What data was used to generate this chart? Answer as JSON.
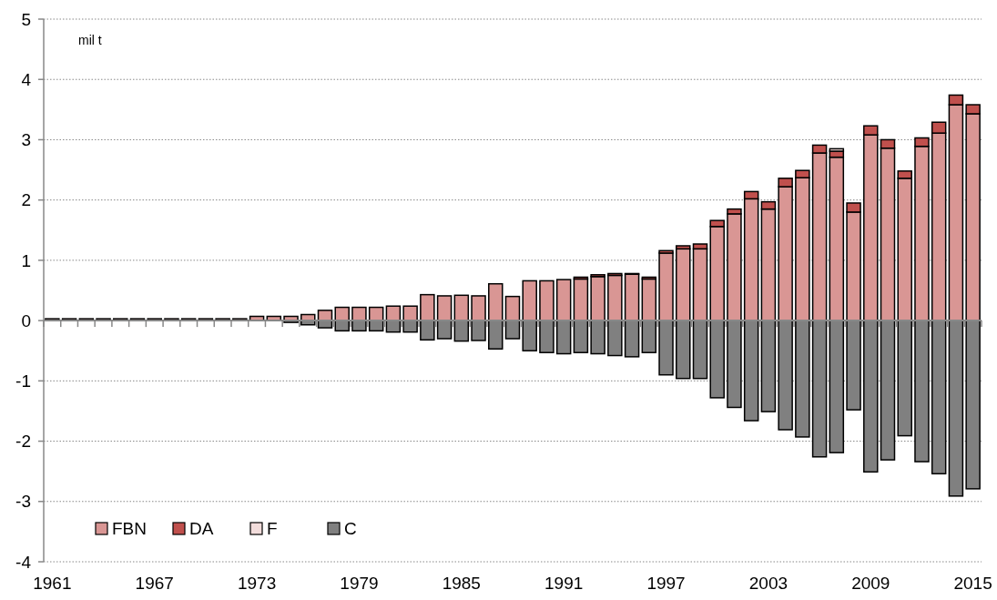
{
  "chart_data": {
    "type": "bar",
    "stacked": true,
    "annotations": [
      "mil t"
    ],
    "categories": [
      "1961",
      null,
      null,
      null,
      null,
      null,
      "1967",
      null,
      null,
      null,
      null,
      null,
      "1973",
      null,
      null,
      null,
      null,
      null,
      "1979",
      null,
      null,
      null,
      null,
      null,
      "1985",
      null,
      null,
      null,
      null,
      null,
      "1991",
      null,
      null,
      null,
      null,
      null,
      "1997",
      null,
      null,
      null,
      null,
      null,
      "2003",
      null,
      null,
      null,
      null,
      null,
      "2009",
      null,
      null,
      null,
      null,
      null,
      "2015"
    ],
    "series": [
      {
        "name": "FBN",
        "color": "#d99694",
        "values": [
          0.03,
          0.03,
          0.03,
          0.03,
          0.03,
          0.03,
          0.03,
          0.03,
          0.03,
          0.03,
          0.03,
          0.03,
          0.07,
          0.07,
          0.07,
          0.1,
          0.17,
          0.22,
          0.22,
          0.22,
          0.24,
          0.24,
          0.43,
          0.41,
          0.42,
          0.41,
          0.61,
          0.4,
          0.66,
          0.66,
          0.68,
          0.69,
          0.73,
          0.75,
          0.77,
          0.69,
          1.12,
          1.19,
          1.19,
          1.56,
          1.77,
          2.02,
          1.85,
          2.22,
          2.37,
          2.78,
          2.71,
          1.8,
          3.08,
          2.86,
          2.36,
          2.89,
          3.11,
          3.58,
          3.43
        ]
      },
      {
        "name": "DA",
        "color": "#c0504d",
        "values": [
          0,
          0,
          0,
          0,
          0,
          0,
          0,
          0,
          0,
          0,
          0,
          0,
          0,
          0,
          0,
          0,
          0,
          0,
          0,
          0,
          0,
          0,
          0,
          0,
          0,
          0,
          0,
          0,
          0,
          0,
          0,
          0.03,
          0.03,
          0.03,
          0.01,
          0.03,
          0.04,
          0.05,
          0.08,
          0.1,
          0.08,
          0.12,
          0.12,
          0.14,
          0.12,
          0.13,
          0.1,
          0.15,
          0.15,
          0.14,
          0.12,
          0.14,
          0.18,
          0.16,
          0.15
        ]
      },
      {
        "name": "F",
        "color": "#f2dcdb",
        "values": [
          0,
          0,
          0,
          0,
          0,
          0,
          0,
          0,
          0,
          0,
          0,
          0,
          0,
          0,
          0,
          0,
          0,
          0,
          0,
          0,
          0,
          0,
          0,
          0,
          0,
          0,
          0,
          0,
          0,
          0,
          0,
          0,
          0,
          0,
          0,
          0,
          0,
          0,
          0,
          0,
          0,
          0,
          0,
          0,
          0,
          0,
          0.04,
          0,
          0,
          0,
          0,
          0,
          0,
          0,
          0
        ]
      },
      {
        "name": "C",
        "color": "#808080",
        "values": [
          0,
          0,
          0,
          0,
          0,
          0,
          0,
          0,
          0,
          0,
          0,
          0,
          0,
          0,
          -0.03,
          -0.07,
          -0.12,
          -0.17,
          -0.17,
          -0.17,
          -0.19,
          -0.19,
          -0.32,
          -0.3,
          -0.34,
          -0.33,
          -0.47,
          -0.3,
          -0.5,
          -0.53,
          -0.55,
          -0.53,
          -0.55,
          -0.58,
          -0.6,
          -0.53,
          -0.9,
          -0.96,
          -0.96,
          -1.28,
          -1.44,
          -1.66,
          -1.51,
          -1.81,
          -1.93,
          -2.26,
          -2.19,
          -1.48,
          -2.51,
          -2.31,
          -1.91,
          -2.34,
          -2.54,
          -2.91,
          -2.79
        ]
      }
    ],
    "ylim": [
      -4,
      5
    ],
    "yticks": [
      -4,
      -3,
      -2,
      -1,
      0,
      1,
      2,
      3,
      4,
      5
    ],
    "grid": "y",
    "legend": "bottom left"
  }
}
